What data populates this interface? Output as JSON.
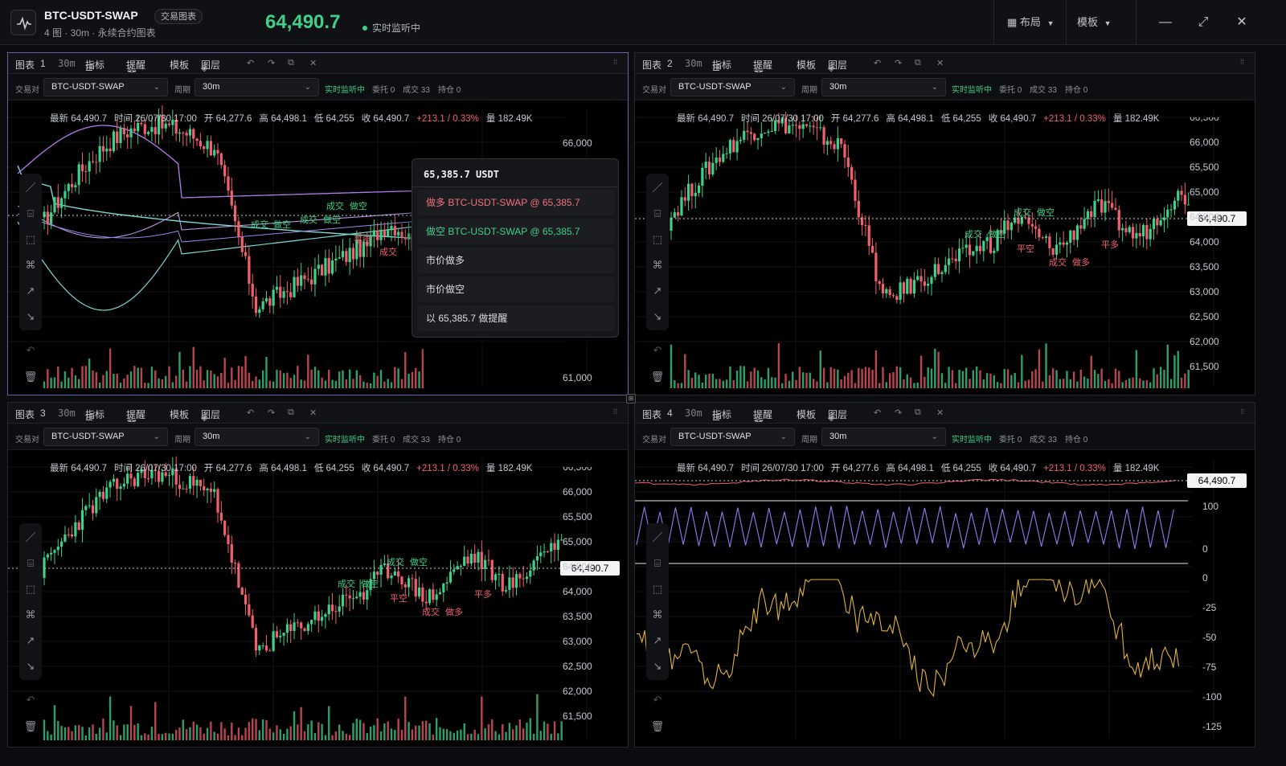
{
  "header": {
    "symbol": "BTC-USDT-SWAP",
    "badge": "交易图表",
    "subtitle": "4 图 · 30m · 永续合约图表",
    "price": "64,490.7",
    "live": "实时监听中",
    "layout_label": "布局",
    "template_label": "模板"
  },
  "panel_labels": {
    "indicators": "指标",
    "alerts": "提醒",
    "template": "模板",
    "layers": "图层",
    "pair_label": "交易对",
    "period_label": "周期",
    "status": "实时监听中",
    "orders": "委托 0",
    "fills": "成交 33",
    "positions": "持仓 0"
  },
  "panels": [
    {
      "title": "图表",
      "index": "1",
      "timeframe": "30m",
      "pair": "BTC-USDT-SWAP",
      "period": "30m"
    },
    {
      "title": "图表",
      "index": "2",
      "timeframe": "30m",
      "pair": "BTC-USDT-SWAP",
      "period": "30m"
    },
    {
      "title": "图表",
      "index": "3",
      "timeframe": "30m",
      "pair": "BTC-USDT-SWAP",
      "period": "30m"
    },
    {
      "title": "图表",
      "index": "4",
      "timeframe": "30m",
      "pair": "BTC-USDT-SWAP",
      "period": "30m"
    }
  ],
  "ohlc": {
    "last": "最新 64,490.7",
    "time": "时间 26/07/30 17:00",
    "open": "开 64,277.6",
    "high": "高 64,498.1",
    "low": "低 64,255",
    "close": "收 64,490.7",
    "change": "+213.1 / 0.33%",
    "volume": "量 182.49K"
  },
  "price_axis_full": [
    "66,500",
    "66,000",
    "65,500",
    "65,000",
    "64,500",
    "64,000",
    "63,500",
    "63,000",
    "62,500",
    "62,000",
    "61,500"
  ],
  "price_axis_p1": [
    "66,000",
    "61,000"
  ],
  "current_price_tag": "64,490.7",
  "rsi_axis": [
    "100",
    "0"
  ],
  "osc_axis": [
    "0",
    "-25",
    "-50",
    "-75",
    "-100",
    "-125"
  ],
  "markers": {
    "fill": "成交",
    "short": "做空",
    "long": "做多",
    "close": "平空",
    "flat": "平多"
  },
  "context_menu": {
    "price": "65,385.7 USDT",
    "buy": "做多 BTC-USDT-SWAP @ 65,385.7",
    "sell": "做空 BTC-USDT-SWAP @ 65,385.7",
    "market_long": "市价做多",
    "market_short": "市价做空",
    "alert": "以 65,385.7 做提醒"
  },
  "colors": {
    "up": "#3fd189",
    "down": "#f0616d",
    "bb": "#b27cf0",
    "ma": "#7dd8d0",
    "rsi": "#8f7cf0",
    "osc": "#e0b33a",
    "active_border": "#6b5ea8"
  },
  "icons": [
    "pulse-icon",
    "layout-icon",
    "chevron-down-icon",
    "minimize-icon",
    "expand-icon",
    "close-icon",
    "indicator-icon",
    "bell-icon",
    "layers-icon",
    "undo-icon",
    "redo-icon",
    "popout-icon",
    "line-tool-icon",
    "ruler-icon",
    "select-icon",
    "magnet-icon",
    "trend-up-icon",
    "trend-down-icon",
    "trash-icon",
    "drag-handle-icon"
  ]
}
